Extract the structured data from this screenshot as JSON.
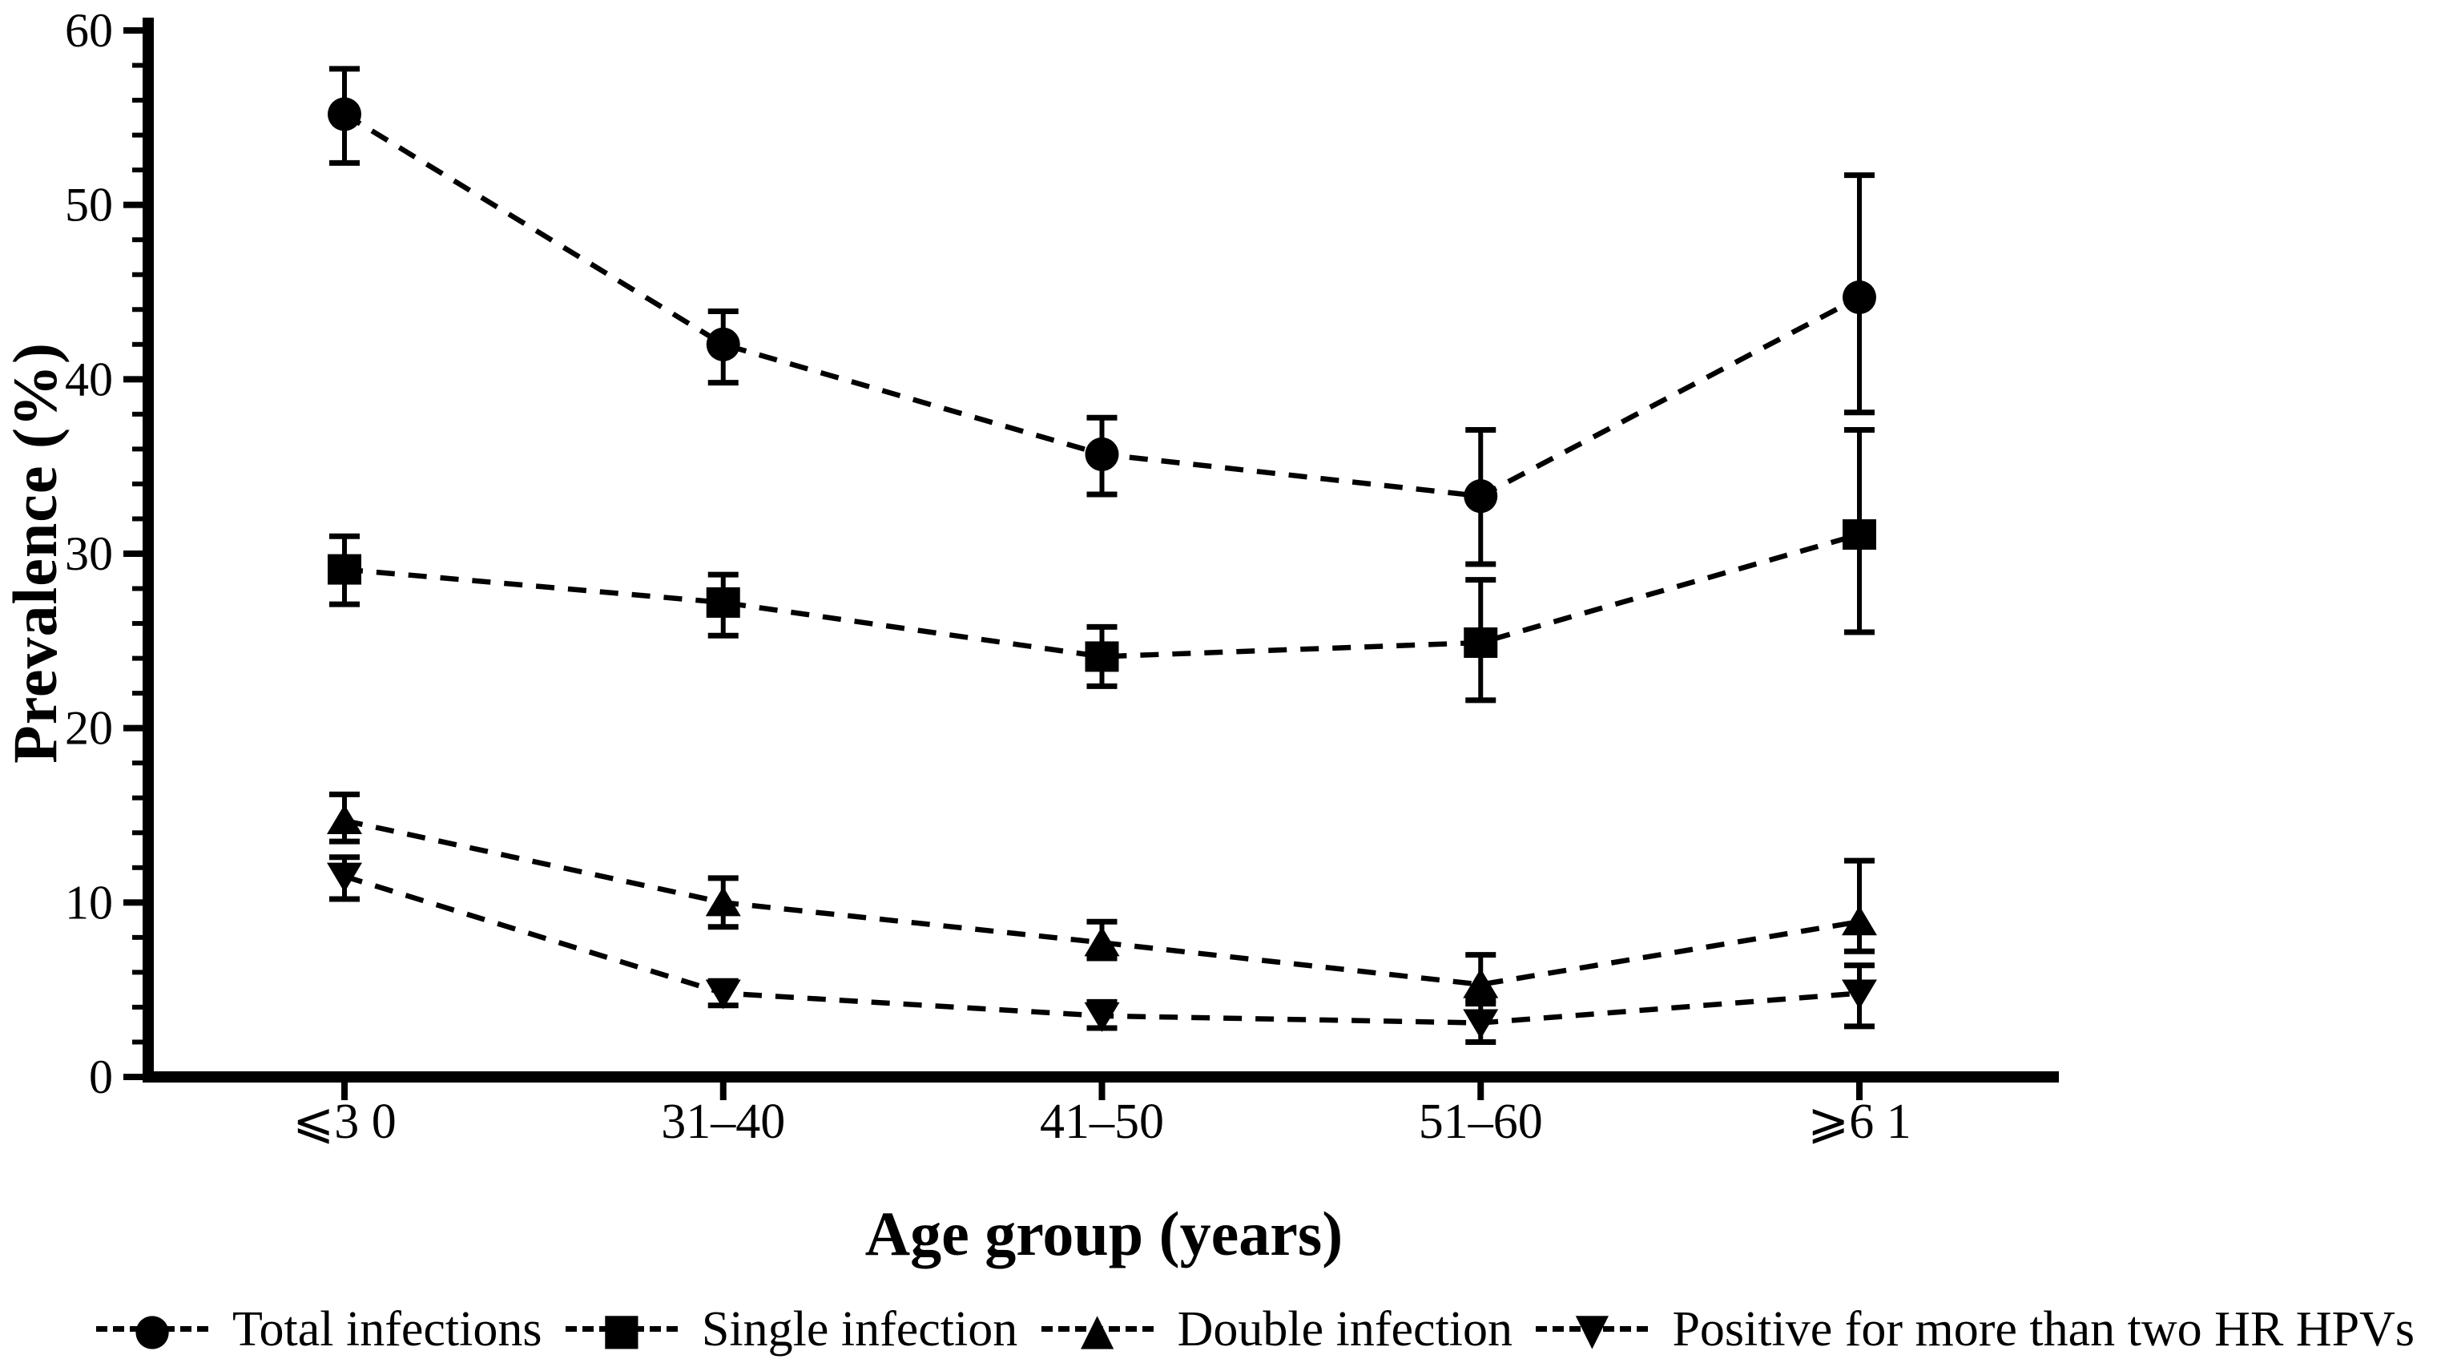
{
  "figure": {
    "background": "#ffffff",
    "ink_color": "#000000"
  },
  "chart_data": {
    "type": "line",
    "title": "",
    "xlabel": "Age group (years)",
    "ylabel": "Prevalence (%)",
    "categories": [
      "⩽3 0",
      "31–40",
      "41–50",
      "51–60",
      "⩾6 1"
    ],
    "y_ticks": [
      0,
      10,
      20,
      30,
      40,
      50,
      60
    ],
    "ylim": [
      0,
      60
    ],
    "y_minor_tick_step": 2,
    "grid": "off",
    "line_style": "dashed",
    "legend_position": "bottom",
    "error_bars": "95% CI",
    "series": [
      {
        "name": "Total infections",
        "marker": "circle",
        "glyph": "●",
        "values": [
          55.2,
          42.0,
          35.7,
          33.3,
          44.7
        ],
        "ci_low": [
          52.4,
          39.8,
          33.4,
          29.4,
          38.1
        ],
        "ci_high": [
          57.8,
          43.9,
          37.8,
          37.1,
          51.7
        ]
      },
      {
        "name": "Single infection",
        "marker": "square",
        "glyph": "■",
        "values": [
          29.1,
          27.2,
          24.1,
          24.9,
          31.1
        ],
        "ci_low": [
          27.1,
          25.3,
          22.4,
          21.6,
          25.5
        ],
        "ci_high": [
          31.0,
          28.8,
          25.8,
          28.5,
          37.1
        ]
      },
      {
        "name": "Double infection",
        "marker": "triangle-up",
        "glyph": "▲",
        "values": [
          14.7,
          10.0,
          7.7,
          5.3,
          8.9
        ],
        "ci_low": [
          13.5,
          8.6,
          6.8,
          4.4,
          7.2
        ],
        "ci_high": [
          16.2,
          11.4,
          8.9,
          7.0,
          12.4
        ]
      },
      {
        "name": "Positive for more than two HR HPVs",
        "marker": "triangle-down",
        "glyph": "▼",
        "values": [
          11.5,
          4.8,
          3.5,
          3.1,
          4.8
        ],
        "ci_low": [
          10.2,
          4.1,
          2.8,
          2.0,
          2.9
        ],
        "ci_high": [
          12.6,
          5.5,
          4.3,
          4.2,
          6.4
        ]
      }
    ]
  }
}
